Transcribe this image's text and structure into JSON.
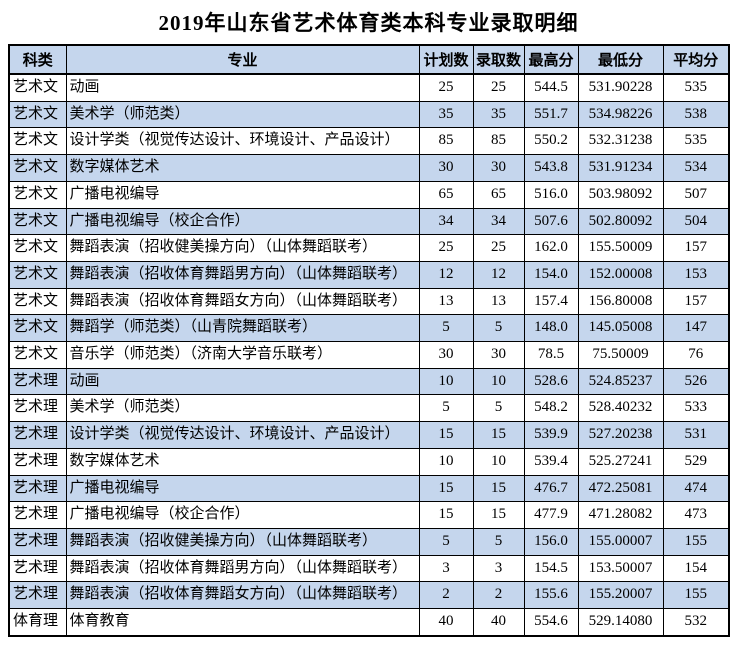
{
  "page": {
    "title": "2019年山东省艺术体育类本科专业录取明细"
  },
  "colors": {
    "header_bg": "#c5d6ed",
    "row_alt_bg": "#c5d6ed",
    "border": "#000000",
    "text": "#000000"
  },
  "table": {
    "headers": [
      "科类",
      "专业",
      "计划数",
      "录取数",
      "最高分",
      "最低分",
      "平均分"
    ],
    "rows": [
      {
        "category": "艺术文",
        "major": "动画",
        "plan": "25",
        "admitted": "25",
        "max": "544.5",
        "min": "531.90228",
        "avg": "535"
      },
      {
        "category": "艺术文",
        "major": "美术学（师范类）",
        "plan": "35",
        "admitted": "35",
        "max": "551.7",
        "min": "534.98226",
        "avg": "538"
      },
      {
        "category": "艺术文",
        "major": "设计学类（视觉传达设计、环境设计、产品设计）",
        "plan": "85",
        "admitted": "85",
        "max": "550.2",
        "min": "532.31238",
        "avg": "535"
      },
      {
        "category": "艺术文",
        "major": "数字媒体艺术",
        "plan": "30",
        "admitted": "30",
        "max": "543.8",
        "min": "531.91234",
        "avg": "534"
      },
      {
        "category": "艺术文",
        "major": "广播电视编导",
        "plan": "65",
        "admitted": "65",
        "max": "516.0",
        "min": "503.98092",
        "avg": "507"
      },
      {
        "category": "艺术文",
        "major": "广播电视编导（校企合作）",
        "plan": "34",
        "admitted": "34",
        "max": "507.6",
        "min": "502.80092",
        "avg": "504"
      },
      {
        "category": "艺术文",
        "major": "舞蹈表演（招收健美操方向）（山体舞蹈联考）",
        "plan": "25",
        "admitted": "25",
        "max": "162.0",
        "min": "155.50009",
        "avg": "157"
      },
      {
        "category": "艺术文",
        "major": "舞蹈表演（招收体育舞蹈男方向）（山体舞蹈联考）",
        "plan": "12",
        "admitted": "12",
        "max": "154.0",
        "min": "152.00008",
        "avg": "153"
      },
      {
        "category": "艺术文",
        "major": "舞蹈表演（招收体育舞蹈女方向）（山体舞蹈联考）",
        "plan": "13",
        "admitted": "13",
        "max": "157.4",
        "min": "156.80008",
        "avg": "157"
      },
      {
        "category": "艺术文",
        "major": "舞蹈学（师范类）（山青院舞蹈联考）",
        "plan": "5",
        "admitted": "5",
        "max": "148.0",
        "min": "145.05008",
        "avg": "147"
      },
      {
        "category": "艺术文",
        "major": "音乐学（师范类）（济南大学音乐联考）",
        "plan": "30",
        "admitted": "30",
        "max": "78.5",
        "min": "75.50009",
        "avg": "76"
      },
      {
        "category": "艺术理",
        "major": "动画",
        "plan": "10",
        "admitted": "10",
        "max": "528.6",
        "min": "524.85237",
        "avg": "526"
      },
      {
        "category": "艺术理",
        "major": "美术学（师范类）",
        "plan": "5",
        "admitted": "5",
        "max": "548.2",
        "min": "528.40232",
        "avg": "533"
      },
      {
        "category": "艺术理",
        "major": "设计学类（视觉传达设计、环境设计、产品设计）",
        "plan": "15",
        "admitted": "15",
        "max": "539.9",
        "min": "527.20238",
        "avg": "531"
      },
      {
        "category": "艺术理",
        "major": "数字媒体艺术",
        "plan": "10",
        "admitted": "10",
        "max": "539.4",
        "min": "525.27241",
        "avg": "529"
      },
      {
        "category": "艺术理",
        "major": "广播电视编导",
        "plan": "15",
        "admitted": "15",
        "max": "476.7",
        "min": "472.25081",
        "avg": "474"
      },
      {
        "category": "艺术理",
        "major": "广播电视编导（校企合作）",
        "plan": "15",
        "admitted": "15",
        "max": "477.9",
        "min": "471.28082",
        "avg": "473"
      },
      {
        "category": "艺术理",
        "major": "舞蹈表演（招收健美操方向）（山体舞蹈联考）",
        "plan": "5",
        "admitted": "5",
        "max": "156.0",
        "min": "155.00007",
        "avg": "155"
      },
      {
        "category": "艺术理",
        "major": "舞蹈表演（招收体育舞蹈男方向）（山体舞蹈联考）",
        "plan": "3",
        "admitted": "3",
        "max": "154.5",
        "min": "153.50007",
        "avg": "154"
      },
      {
        "category": "艺术理",
        "major": "舞蹈表演（招收体育舞蹈女方向）（山体舞蹈联考）",
        "plan": "2",
        "admitted": "2",
        "max": "155.6",
        "min": "155.20007",
        "avg": "155"
      },
      {
        "category": "体育理",
        "major": "体育教育",
        "plan": "40",
        "admitted": "40",
        "max": "554.6",
        "min": "529.14080",
        "avg": "532"
      }
    ]
  }
}
